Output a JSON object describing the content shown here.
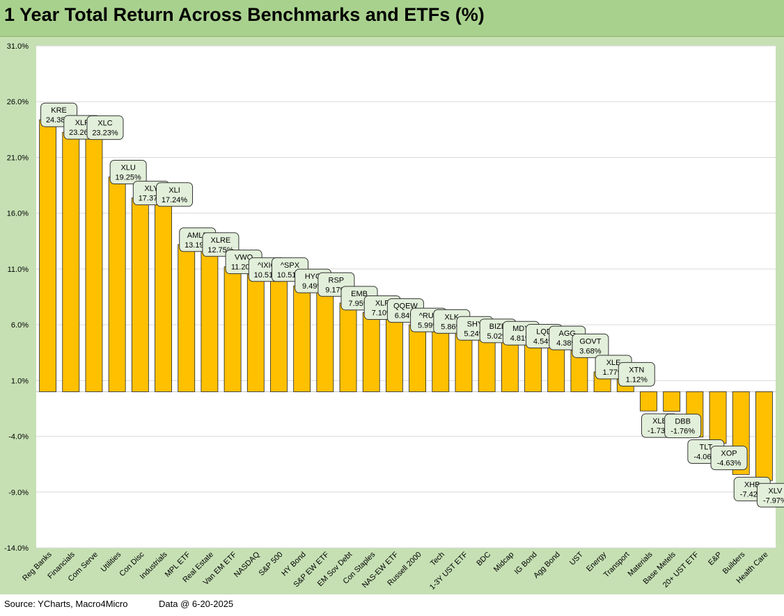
{
  "title": "1 Year Total Return Across Benchmarks and ETFs (%)",
  "footer": {
    "source": "Source: YCharts, Macro4Micro",
    "data_asof": "Data @ 6-20-2025"
  },
  "colors": {
    "bar": "#ffc000",
    "bar_outline": "#222222",
    "label_fill": "#e2efda",
    "background": "#c6e0b4",
    "plot_area": "#ffffff",
    "title_bar": "#a9d18e"
  },
  "chart_data": {
    "type": "bar",
    "title": "1 Year Total Return Across Benchmarks and ETFs (%)",
    "ylim": [
      -14,
      31
    ],
    "yticks": [
      31,
      26,
      21,
      16,
      11,
      6,
      1,
      -4,
      -9,
      -14
    ],
    "ytick_labels": [
      "31.0%",
      "26.0%",
      "21.0%",
      "16.0%",
      "11.0%",
      "6.0%",
      "1.0%",
      "-4.0%",
      "-9.0%",
      "-14.0%"
    ],
    "grid": true,
    "categories": [
      "Reg Banks",
      "Financials",
      "Com Serve",
      "Utilities",
      "Con Disc",
      "Industrials",
      "MPL ETF",
      "Real Estate",
      "Van EM ETF",
      "NASDAQ",
      "S&P 500",
      "HY Bond",
      "S&P EW ETF",
      "EM Sov Debt",
      "Con Staples",
      "NAS-EW ETF",
      "Russell 2000",
      "Tech",
      "1-3Y UST ETF",
      "BDC",
      "Midcap",
      "IG Bond",
      "Agg Bond",
      "UST",
      "Energy",
      "Transport",
      "Materials",
      "Base Metels",
      "20+ UST ETF",
      "E&P",
      "Builders",
      "Health Care"
    ],
    "values": [
      24.38,
      23.26,
      23.23,
      19.25,
      17.37,
      17.24,
      13.19,
      12.75,
      11.2,
      10.51,
      10.51,
      9.49,
      9.17,
      7.95,
      7.1,
      6.84,
      5.99,
      5.86,
      5.24,
      5.02,
      4.81,
      4.54,
      4.38,
      3.68,
      1.77,
      1.12,
      -1.73,
      -1.76,
      -4.06,
      -4.63,
      -7.42,
      -7.97
    ],
    "tickers": [
      "KRE",
      "XLF",
      "XLC",
      "XLU",
      "XLY",
      "XLI",
      "AMLP",
      "XLRE",
      "VWO",
      "^IXIC",
      "^SPX",
      "HYG",
      "RSP",
      "EMB",
      "XLP",
      "QQEW",
      "^RUT",
      "XLK",
      "SHY",
      "BIZD",
      "MDY",
      "LQD",
      "AGG",
      "GOVT",
      "XLE",
      "XTN",
      "XLB",
      "DBB",
      "TLT",
      "XOP",
      "XHB",
      "XLV"
    ],
    "value_labels": [
      "24.38%",
      "23.26%",
      "23.23%",
      "19.25%",
      "17.37%",
      "17.24%",
      "13.19%",
      "12.75%",
      "11.20%",
      "10.51%",
      "10.51%",
      "9.49%",
      "9.17%",
      "7.95%",
      "7.10%",
      "6.84%",
      "5.99%",
      "5.86%",
      "5.24%",
      "5.02%",
      "4.81%",
      "4.54%",
      "4.38%",
      "3.68%",
      "1.77%",
      "1.12%",
      "-1.73%",
      "-1.76%",
      "-4.06%",
      "-4.63%",
      "-7.42%",
      "-7.97%"
    ]
  }
}
